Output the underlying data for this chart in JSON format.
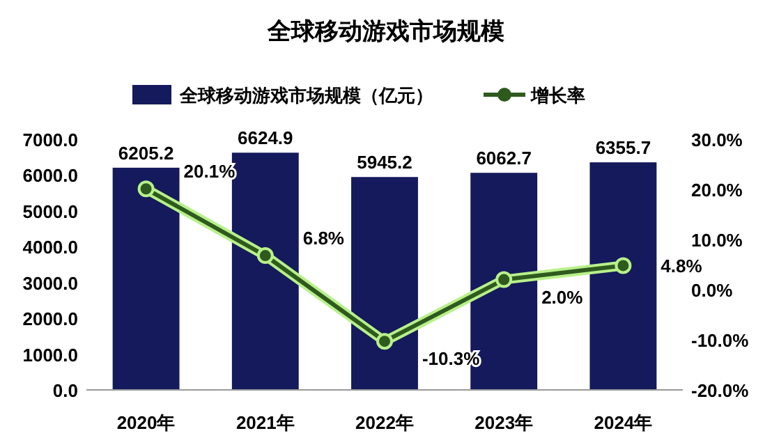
{
  "chart_data": {
    "type": "bar",
    "title": "全球移动游戏市场规模",
    "categories": [
      "2020年",
      "2021年",
      "2022年",
      "2023年",
      "2024年"
    ],
    "series": [
      {
        "name": "全球移动游戏市场规模（亿元）",
        "color": "#141a5c",
        "values": [
          6205.2,
          6624.9,
          5945.2,
          6062.7,
          6355.7
        ],
        "value_labels": [
          "6205.2",
          "6624.9",
          "5945.2",
          "6062.7",
          "6355.7"
        ]
      },
      {
        "name": "增长率",
        "type": "line",
        "axis": "y2",
        "color": "#2e5a1e",
        "values": [
          20.1,
          6.8,
          -10.3,
          2.0,
          4.8
        ],
        "value_labels": [
          "20.1%",
          "6.8%",
          "-10.3%",
          "2.0%",
          "4.8%"
        ]
      }
    ],
    "ylim": [
      0,
      7000
    ],
    "yticks": [
      {
        "value": 0,
        "label": "0.0"
      },
      {
        "value": 1000,
        "label": "1000.0"
      },
      {
        "value": 2000,
        "label": "2000.0"
      },
      {
        "value": 3000,
        "label": "3000.0"
      },
      {
        "value": 4000,
        "label": "4000.0"
      },
      {
        "value": 5000,
        "label": "5000.0"
      },
      {
        "value": 6000,
        "label": "6000.0"
      },
      {
        "value": 7000,
        "label": "7000.0"
      }
    ],
    "y2lim": [
      -20,
      30
    ],
    "y2ticks": [
      {
        "value": -20,
        "label": "-20.0%"
      },
      {
        "value": -10,
        "label": "-10.0%"
      },
      {
        "value": 0,
        "label": "0.0%"
      },
      {
        "value": 10,
        "label": "10.0%"
      },
      {
        "value": 20,
        "label": "20.0%"
      },
      {
        "value": 30,
        "label": "30.0%"
      }
    ],
    "legend": "top",
    "marker": "circle",
    "grid": false
  }
}
